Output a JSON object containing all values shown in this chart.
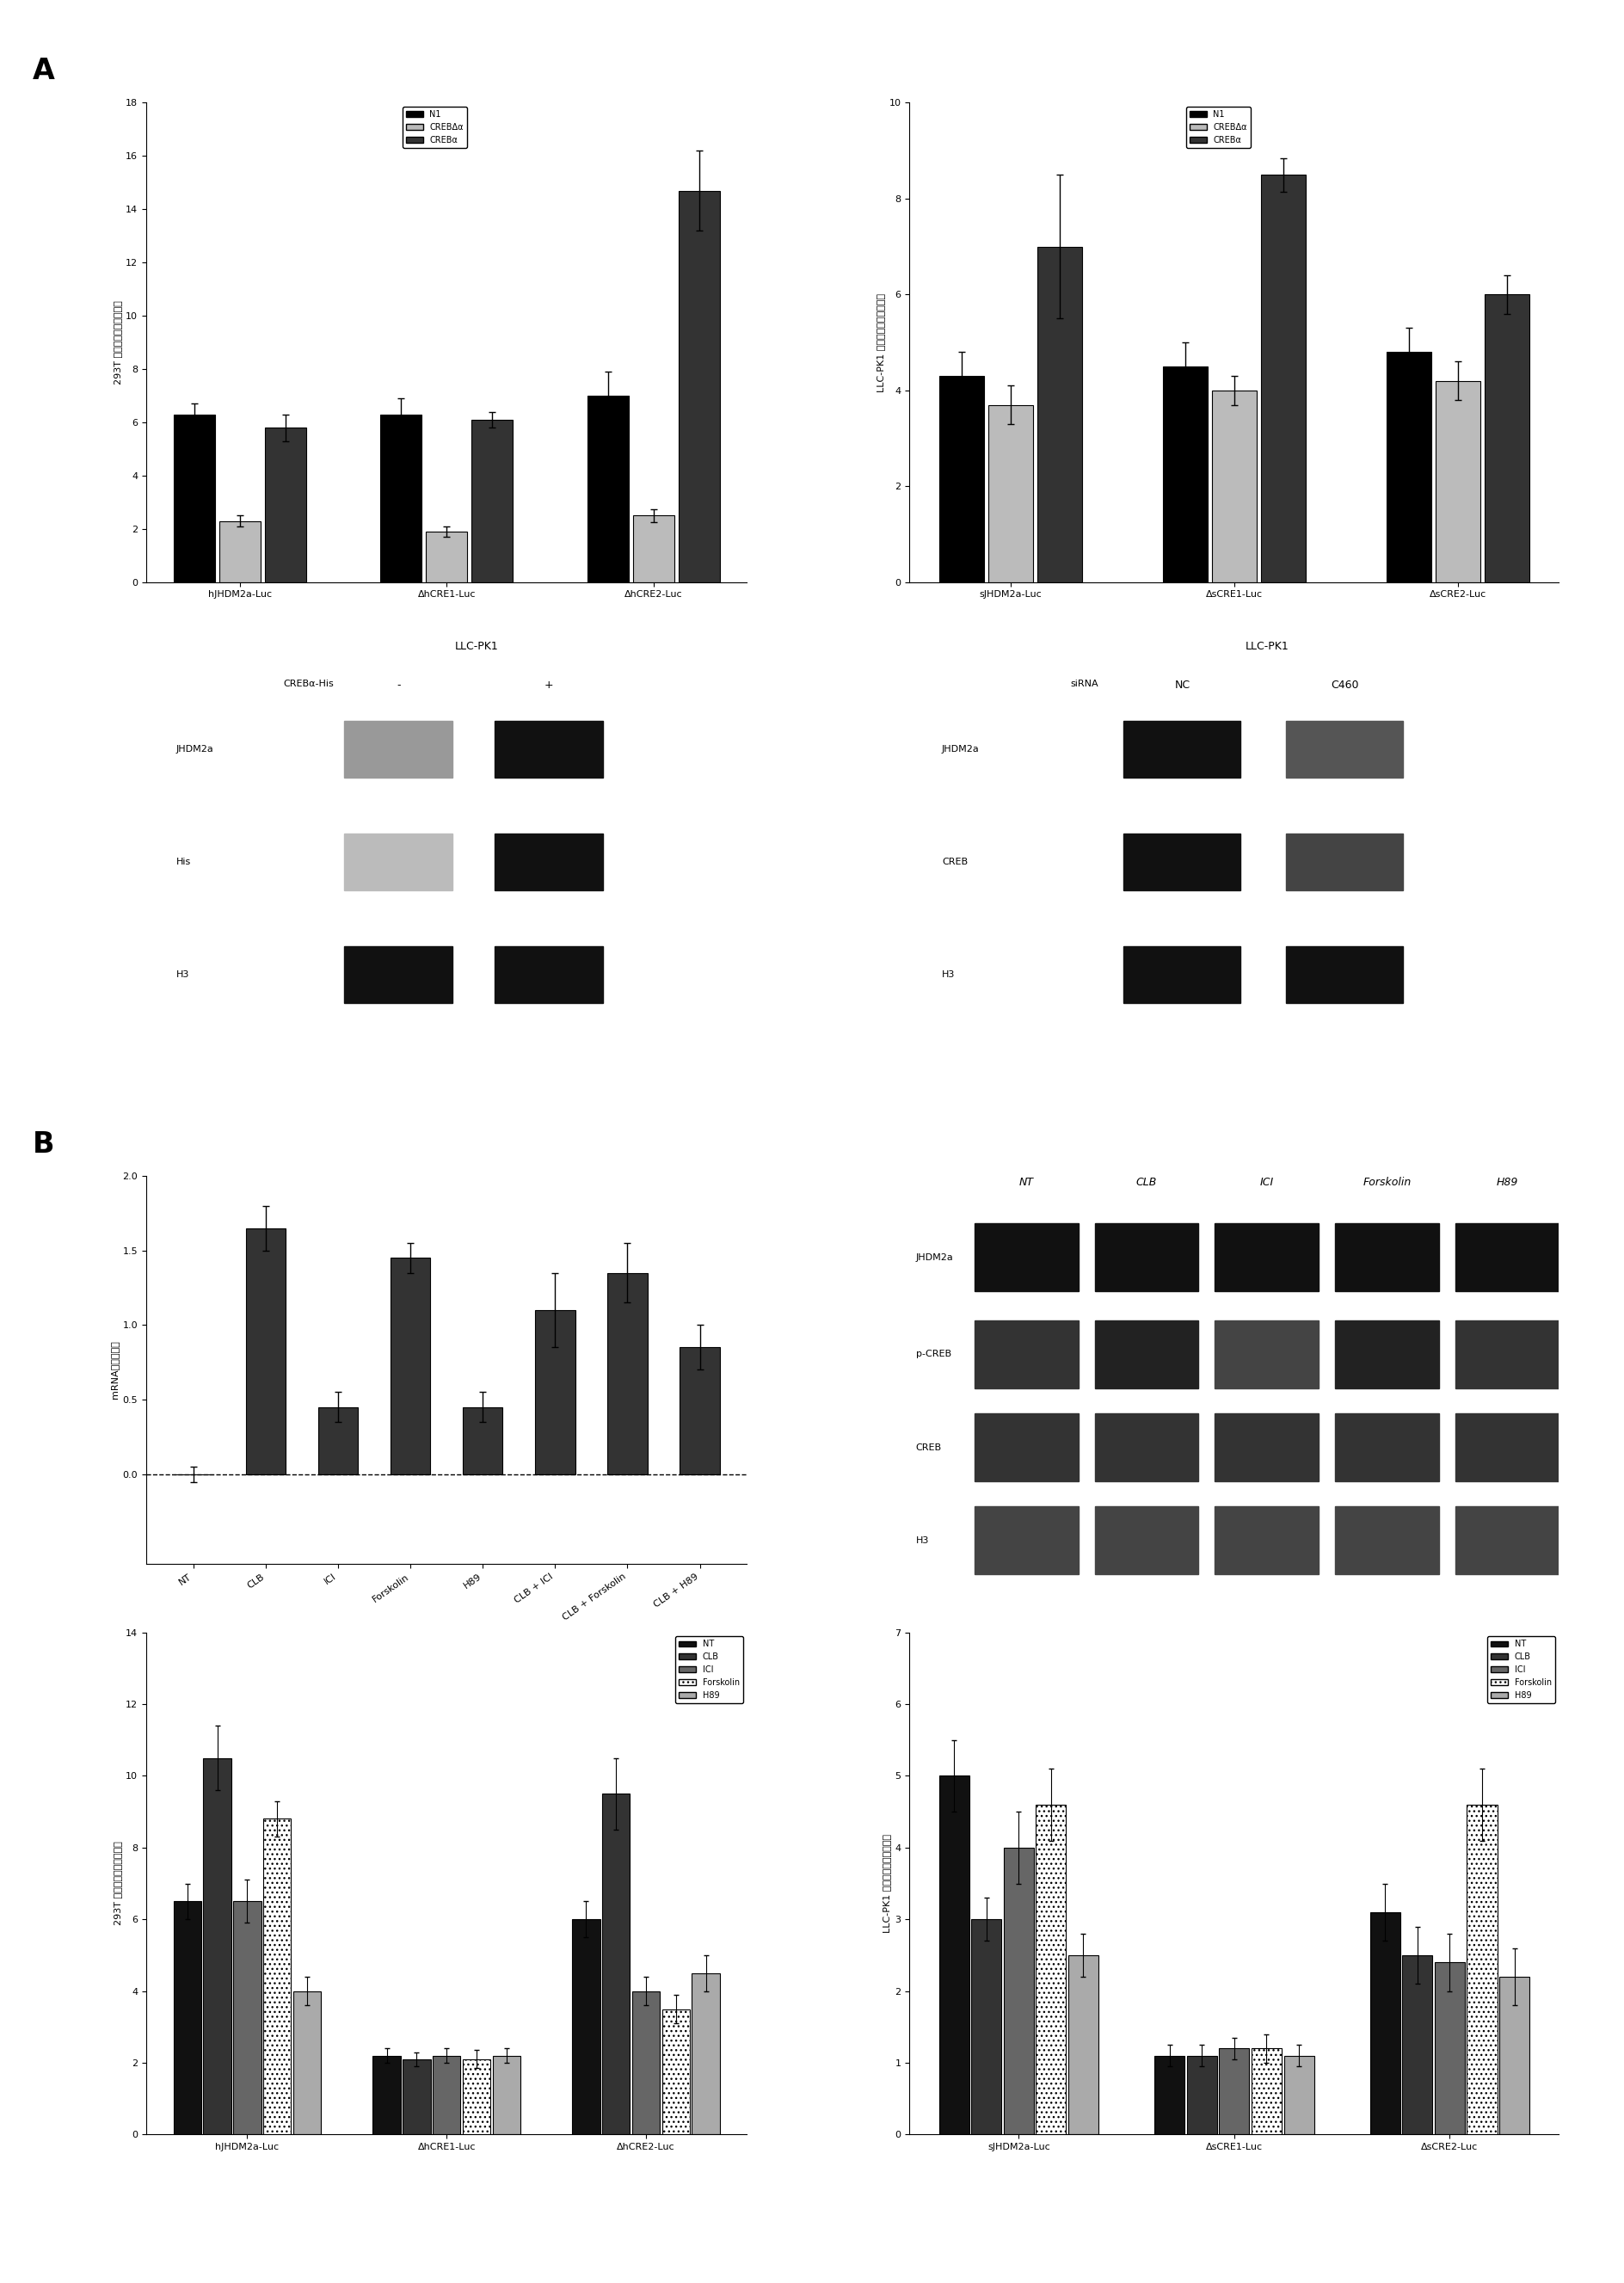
{
  "panel_A_left_bar": {
    "ylabel": "293T 细胞相对荧光素酶活性",
    "groups": [
      "hJHDM2a-Luc",
      "ΔhCRE1-Luc",
      "ΔhCRE2-Luc"
    ],
    "series": [
      "N1",
      "CREBΔα",
      "CREBα"
    ],
    "values": [
      [
        6.3,
        2.3,
        5.8
      ],
      [
        6.3,
        1.9,
        6.1
      ],
      [
        7.0,
        2.5,
        14.7
      ]
    ],
    "errors": [
      [
        0.4,
        0.2,
        0.5
      ],
      [
        0.6,
        0.2,
        0.3
      ],
      [
        0.9,
        0.25,
        1.5
      ]
    ],
    "ylim": [
      0,
      18
    ],
    "yticks": [
      0,
      2,
      4,
      6,
      8,
      10,
      12,
      14,
      16,
      18
    ],
    "colors": [
      "#000000",
      "#bbbbbb",
      "#333333"
    ]
  },
  "panel_A_right_bar": {
    "ylabel": "LLC-PK1 细胞相对荧光素酶活性",
    "groups": [
      "sJHDM2a-Luc",
      "ΔsCRE1-Luc",
      "ΔsCRE2-Luc"
    ],
    "series": [
      "N1",
      "CREBΔα",
      "CREBα"
    ],
    "values": [
      [
        4.3,
        3.7,
        7.0
      ],
      [
        4.5,
        4.0,
        8.5
      ],
      [
        4.8,
        4.2,
        6.0
      ]
    ],
    "errors": [
      [
        0.5,
        0.4,
        1.5
      ],
      [
        0.5,
        0.3,
        0.35
      ],
      [
        0.5,
        0.4,
        0.4
      ]
    ],
    "ylim": [
      0,
      10
    ],
    "yticks": [
      0,
      2,
      4,
      6,
      8,
      10
    ],
    "colors": [
      "#000000",
      "#bbbbbb",
      "#333333"
    ]
  },
  "panel_B_mrna": {
    "ylabel": "mRNA相对表达量",
    "groups": [
      "NT",
      "CLB",
      "ICI",
      "Forskolin",
      "H89",
      "CLB + ICI",
      "CLB + Forskolin",
      "CLB + H89"
    ],
    "values": [
      0.0,
      1.65,
      0.45,
      1.45,
      0.45,
      1.1,
      1.35,
      0.85
    ],
    "errors": [
      0.05,
      0.15,
      0.1,
      0.1,
      0.1,
      0.25,
      0.2,
      0.15
    ],
    "ylim": [
      -0.6,
      2.0
    ],
    "yticks": [
      0.0,
      0.5,
      1.0,
      1.5,
      2.0
    ],
    "color": "#333333"
  },
  "panel_B_bot_left": {
    "ylabel": "293T 细胞相对荧光素酶活性",
    "groups": [
      "hJHDM2a-Luc",
      "ΔhCRE1-Luc",
      "ΔhCRE2-Luc"
    ],
    "series": [
      "NT",
      "CLB",
      "ICI",
      "Forskolin",
      "H89"
    ],
    "values": [
      [
        6.5,
        2.2,
        6.0
      ],
      [
        10.5,
        2.1,
        9.5
      ],
      [
        6.5,
        2.2,
        4.0
      ],
      [
        8.8,
        2.1,
        3.5
      ],
      [
        4.0,
        2.2,
        4.5
      ]
    ],
    "errors": [
      [
        0.5,
        0.2,
        0.5
      ],
      [
        0.9,
        0.2,
        1.0
      ],
      [
        0.6,
        0.2,
        0.4
      ],
      [
        0.5,
        0.25,
        0.4
      ],
      [
        0.4,
        0.2,
        0.5
      ]
    ],
    "ylim": [
      0,
      14
    ],
    "yticks": [
      0,
      2,
      4,
      6,
      8,
      10,
      12,
      14
    ],
    "colors": [
      "#111111",
      "#333333",
      "#666666",
      "#ffffff",
      "#aaaaaa"
    ]
  },
  "panel_B_bot_right": {
    "ylabel": "LLC-PK1 细胞相对荧光素酶活性",
    "groups": [
      "sJHDM2a-Luc",
      "ΔsCRE1-Luc",
      "ΔsCRE2-Luc"
    ],
    "series": [
      "NT",
      "CLB",
      "ICI",
      "Forskolin",
      "H89"
    ],
    "values": [
      [
        5.0,
        1.1,
        3.1
      ],
      [
        3.0,
        1.1,
        2.5
      ],
      [
        4.0,
        1.2,
        2.4
      ],
      [
        4.6,
        1.2,
        4.6
      ],
      [
        2.5,
        1.1,
        2.2
      ]
    ],
    "errors": [
      [
        0.5,
        0.15,
        0.4
      ],
      [
        0.3,
        0.15,
        0.4
      ],
      [
        0.5,
        0.15,
        0.4
      ],
      [
        0.5,
        0.2,
        0.5
      ],
      [
        0.3,
        0.15,
        0.4
      ]
    ],
    "ylim": [
      0,
      7
    ],
    "yticks": [
      0,
      1,
      2,
      3,
      4,
      5,
      6,
      7
    ],
    "colors": [
      "#111111",
      "#333333",
      "#666666",
      "#ffffff",
      "#aaaaaa"
    ]
  },
  "wb_A_left": {
    "title": "LLC-PK1",
    "col_header": "CREBα-His",
    "lanes": [
      "-",
      "+"
    ],
    "rows": [
      "JHDM2a",
      "His",
      "H3"
    ],
    "band_colors": [
      [
        "#999999",
        "#111111"
      ],
      [
        "#bbbbbb",
        "#111111"
      ],
      [
        "#111111",
        "#111111"
      ]
    ]
  },
  "wb_A_right": {
    "title": "LLC-PK1",
    "col_header": "siRNA",
    "lanes": [
      "NC",
      "C460"
    ],
    "rows": [
      "JHDM2a",
      "CREB",
      "H3"
    ],
    "band_colors": [
      [
        "#111111",
        "#555555"
      ],
      [
        "#111111",
        "#444444"
      ],
      [
        "#111111",
        "#111111"
      ]
    ]
  },
  "wb_B": {
    "lanes": [
      "NT",
      "CLB",
      "ICI",
      "Forskolin",
      "H89"
    ],
    "rows": [
      "JHDM2a",
      "p-CREB",
      "CREB",
      "H3"
    ],
    "band_colors": [
      [
        "#111111",
        "#111111",
        "#111111",
        "#111111",
        "#111111"
      ],
      [
        "#333333",
        "#222222",
        "#444444",
        "#222222",
        "#333333"
      ],
      [
        "#333333",
        "#333333",
        "#333333",
        "#333333",
        "#333333"
      ],
      [
        "#444444",
        "#444444",
        "#444444",
        "#444444",
        "#444444"
      ]
    ]
  }
}
